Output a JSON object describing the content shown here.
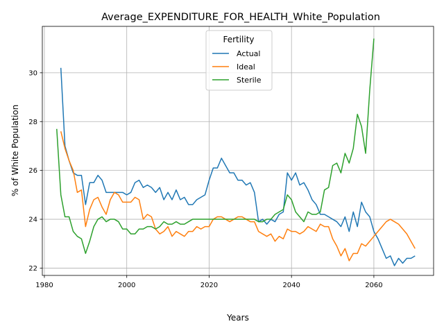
{
  "chart_data": {
    "type": "line",
    "title": "Average_EXPENDITURE_FOR_HEALTH_White_Population",
    "xlabel": "Years",
    "ylabel": "% of White Population",
    "xlim": [
      1979.5,
      2074.5
    ],
    "ylim": [
      21.7,
      31.9
    ],
    "xticks": [
      1980,
      2000,
      2020,
      2040,
      2060
    ],
    "yticks": [
      22,
      24,
      26,
      28,
      30
    ],
    "grid": true,
    "legend": {
      "title": "Fertility",
      "placement": "upper center"
    },
    "series": [
      {
        "name": "Actual",
        "color": "#1f77b4",
        "x": [
          1984,
          1985,
          1986,
          1987,
          1988,
          1989,
          1990,
          1991,
          1992,
          1993,
          1994,
          1995,
          1996,
          1997,
          1998,
          1999,
          2000,
          2001,
          2002,
          2003,
          2004,
          2005,
          2006,
          2007,
          2008,
          2009,
          2010,
          2011,
          2012,
          2013,
          2014,
          2015,
          2016,
          2017,
          2018,
          2019,
          2020,
          2021,
          2022,
          2023,
          2024,
          2025,
          2026,
          2027,
          2028,
          2029,
          2030,
          2031,
          2032,
          2033,
          2034,
          2035,
          2036,
          2037,
          2038,
          2039,
          2040,
          2041,
          2042,
          2043,
          2044,
          2045,
          2046,
          2047,
          2048,
          2049,
          2050,
          2051,
          2052,
          2053,
          2054,
          2055,
          2056,
          2057,
          2058,
          2059,
          2060,
          2061,
          2062,
          2063,
          2064,
          2065,
          2066,
          2067,
          2068,
          2069,
          2070
        ],
        "values": [
          30.2,
          27.0,
          26.4,
          25.9,
          25.8,
          25.8,
          24.6,
          25.5,
          25.5,
          25.8,
          25.6,
          25.1,
          25.1,
          25.1,
          25.1,
          25.1,
          25.0,
          25.1,
          25.5,
          25.6,
          25.3,
          25.4,
          25.3,
          25.1,
          25.3,
          24.8,
          25.1,
          24.8,
          25.2,
          24.8,
          24.9,
          24.6,
          24.6,
          24.8,
          24.9,
          25.0,
          25.6,
          26.1,
          26.1,
          26.5,
          26.2,
          25.9,
          25.9,
          25.6,
          25.6,
          25.4,
          25.5,
          25.1,
          23.9,
          24.0,
          23.8,
          24.0,
          23.9,
          24.2,
          24.3,
          25.9,
          25.6,
          25.9,
          25.4,
          25.5,
          25.2,
          24.8,
          24.6,
          24.2,
          24.2,
          24.1,
          24.0,
          23.9,
          23.7,
          24.1,
          23.5,
          24.3,
          23.7,
          24.7,
          24.3,
          24.1,
          23.5,
          23.2,
          22.8,
          22.4,
          22.5,
          22.1,
          22.4,
          22.2,
          22.4,
          22.4,
          22.5
        ]
      },
      {
        "name": "Ideal",
        "color": "#ff7f0e",
        "x": [
          1984,
          1985,
          1986,
          1987,
          1988,
          1989,
          1990,
          1991,
          1992,
          1993,
          1994,
          1995,
          1996,
          1997,
          1998,
          1999,
          2000,
          2001,
          2002,
          2003,
          2004,
          2005,
          2006,
          2007,
          2008,
          2009,
          2010,
          2011,
          2012,
          2013,
          2014,
          2015,
          2016,
          2017,
          2018,
          2019,
          2020,
          2021,
          2022,
          2023,
          2024,
          2025,
          2026,
          2027,
          2028,
          2029,
          2030,
          2031,
          2032,
          2033,
          2034,
          2035,
          2036,
          2037,
          2038,
          2039,
          2040,
          2041,
          2042,
          2043,
          2044,
          2045,
          2046,
          2047,
          2048,
          2049,
          2050,
          2051,
          2052,
          2053,
          2054,
          2055,
          2056,
          2057,
          2058,
          2059,
          2060,
          2061,
          2062,
          2063,
          2064,
          2065,
          2066,
          2067,
          2068,
          2069,
          2070
        ],
        "values": [
          27.6,
          26.9,
          26.4,
          26.0,
          25.1,
          25.2,
          23.7,
          24.4,
          24.8,
          24.9,
          24.5,
          24.2,
          24.8,
          25.1,
          25.0,
          24.7,
          24.7,
          24.7,
          24.9,
          24.8,
          24.0,
          24.2,
          24.1,
          23.6,
          23.4,
          23.5,
          23.7,
          23.3,
          23.5,
          23.4,
          23.3,
          23.5,
          23.5,
          23.7,
          23.6,
          23.7,
          23.7,
          24.0,
          24.1,
          24.1,
          24.0,
          23.9,
          24.0,
          24.1,
          24.1,
          24.0,
          23.9,
          23.9,
          23.5,
          23.4,
          23.3,
          23.4,
          23.1,
          23.3,
          23.2,
          23.6,
          23.5,
          23.5,
          23.4,
          23.5,
          23.7,
          23.6,
          23.5,
          23.8,
          23.7,
          23.7,
          23.2,
          22.9,
          22.5,
          22.8,
          22.3,
          22.6,
          22.6,
          23.0,
          22.9,
          23.1,
          23.3,
          23.5,
          23.7,
          23.9,
          24.0,
          23.9,
          23.8,
          23.6,
          23.4,
          23.1,
          22.8
        ]
      },
      {
        "name": "Sterile",
        "color": "#2ca02c",
        "x": [
          1983,
          1984,
          1985,
          1986,
          1987,
          1988,
          1989,
          1990,
          1991,
          1992,
          1993,
          1994,
          1995,
          1996,
          1997,
          1998,
          1999,
          2000,
          2001,
          2002,
          2003,
          2004,
          2005,
          2006,
          2007,
          2008,
          2009,
          2010,
          2011,
          2012,
          2013,
          2014,
          2015,
          2016,
          2017,
          2018,
          2019,
          2020,
          2021,
          2022,
          2023,
          2024,
          2025,
          2026,
          2027,
          2028,
          2029,
          2030,
          2031,
          2032,
          2033,
          2034,
          2035,
          2036,
          2037,
          2038,
          2039,
          2040,
          2041,
          2042,
          2043,
          2044,
          2045,
          2046,
          2047,
          2048,
          2049,
          2050,
          2051,
          2052,
          2053,
          2054,
          2055,
          2056,
          2057,
          2058,
          2059,
          2060
        ],
        "values": [
          27.7,
          25.0,
          24.1,
          24.1,
          23.5,
          23.3,
          23.2,
          22.6,
          23.1,
          23.7,
          24.0,
          24.1,
          23.9,
          24.0,
          24.0,
          23.9,
          23.6,
          23.6,
          23.4,
          23.4,
          23.6,
          23.6,
          23.7,
          23.7,
          23.6,
          23.7,
          23.9,
          23.8,
          23.8,
          23.9,
          23.8,
          23.8,
          23.9,
          24.0,
          24.0,
          24.0,
          24.0,
          24.0,
          24.0,
          24.0,
          24.0,
          24.0,
          24.0,
          24.0,
          24.0,
          24.0,
          24.0,
          24.0,
          24.0,
          23.9,
          23.9,
          24.0,
          24.0,
          24.2,
          24.3,
          24.4,
          25.0,
          24.8,
          24.3,
          24.1,
          23.9,
          24.3,
          24.2,
          24.2,
          24.3,
          25.2,
          25.3,
          26.2,
          26.3,
          25.9,
          26.7,
          26.3,
          26.9,
          28.3,
          27.8,
          26.7,
          29.3,
          31.4
        ]
      }
    ]
  }
}
